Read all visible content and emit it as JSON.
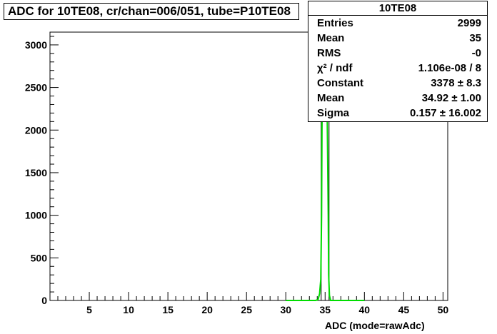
{
  "title": "ADC for 10TE08,  cr/chan=006/051,  tube=P10TE08",
  "stats": {
    "name": "10TE08",
    "rows": [
      {
        "label": "Entries",
        "value": "2999"
      },
      {
        "label": "Mean",
        "value": "35"
      },
      {
        "label": "RMS",
        "value": "-0"
      },
      {
        "label": "χ² / ndf",
        "value": "1.106e-08 / 8"
      },
      {
        "label": "Constant",
        "value": "3378 ± 8.3"
      },
      {
        "label": "Mean",
        "value": "34.92 ± 1.00"
      },
      {
        "label": "Sigma",
        "value": "0.157 ± 16.002"
      }
    ]
  },
  "colors": {
    "histogram": "#000000",
    "fit": "#00dd00"
  },
  "chart_data": {
    "type": "line",
    "title": "ADC for 10TE08,  cr/chan=006/051,  tube=P10TE08",
    "xlabel": "ADC (mode=rawAdc)",
    "ylabel": "",
    "xlim": [
      0,
      50.6
    ],
    "ylim": [
      0,
      3150
    ],
    "x_ticks": [
      5,
      10,
      15,
      20,
      25,
      30,
      35,
      40,
      45,
      50
    ],
    "y_ticks": [
      0,
      500,
      1000,
      1500,
      2000,
      2500,
      3000
    ],
    "histogram": {
      "bin_edges": [
        34.5,
        35.5
      ],
      "counts": [
        2999
      ]
    },
    "series": [
      {
        "x": [
          30.0,
          33.8,
          34.1,
          34.3,
          34.45,
          34.55,
          34.6,
          34.7,
          34.75,
          34.8,
          34.85,
          34.9,
          34.95,
          35.0,
          35.05,
          35.1,
          35.15,
          35.2,
          35.25,
          35.3,
          35.4,
          35.45,
          35.55,
          35.7,
          36.0,
          40.0
        ],
        "y": [
          0,
          0,
          10,
          80,
          250,
          1000,
          2000,
          2800,
          3000,
          3300,
          3100,
          3378,
          3200,
          3350,
          3000,
          2800,
          3100,
          2700,
          2300,
          1900,
          1000,
          300,
          60,
          0,
          0,
          0
        ]
      }
    ],
    "grid": false,
    "legend": "top-right"
  }
}
